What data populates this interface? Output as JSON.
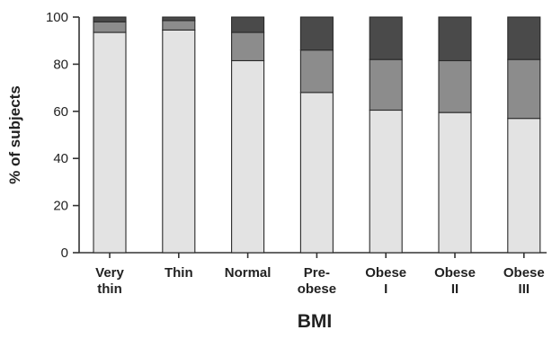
{
  "chart_data": {
    "type": "bar",
    "stacked": true,
    "xlabel": "BMI",
    "ylabel": "% of subjects",
    "ylim": [
      0,
      100
    ],
    "yticks": [
      "0",
      "20",
      "40",
      "60",
      "80",
      "100"
    ],
    "categories": [
      [
        "Very",
        "thin"
      ],
      [
        "Thin"
      ],
      [
        "Normal"
      ],
      [
        "Pre-",
        "obese"
      ],
      [
        "Obese",
        "I"
      ],
      [
        "Obese",
        "II"
      ],
      [
        "Obese",
        "III"
      ]
    ],
    "series": [
      {
        "color": "#e3e3e3",
        "values": [
          93.5,
          94.5,
          81.5,
          68,
          60.5,
          59.5,
          57
        ]
      },
      {
        "color": "#8c8c8c",
        "values": [
          4.5,
          4,
          12,
          18,
          21.5,
          22,
          25
        ]
      },
      {
        "color": "#4a4a4a",
        "values": [
          2,
          1.5,
          6.5,
          14,
          18,
          18.5,
          18
        ]
      }
    ],
    "grid": false,
    "legend": "none"
  }
}
